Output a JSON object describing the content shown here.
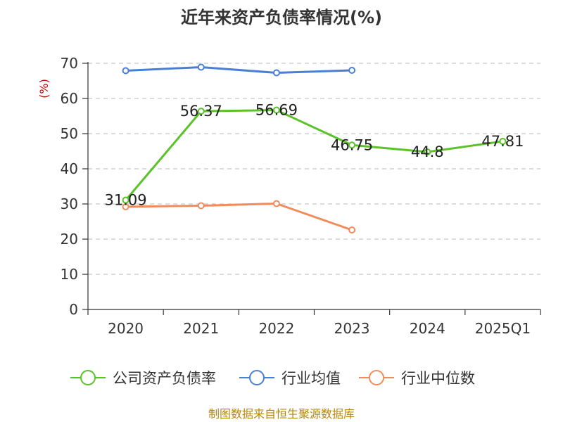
{
  "chart_data": {
    "type": "line",
    "title": "近年来资产负债率情况(%)",
    "ylabel": "(%)",
    "xlabel": "",
    "categories": [
      "2020",
      "2021",
      "2022",
      "2023",
      "2024",
      "2025Q1"
    ],
    "ylim": [
      0,
      70
    ],
    "yticks": [
      0,
      10,
      20,
      30,
      40,
      50,
      60,
      70
    ],
    "grid": "horizontal dashed",
    "legend_position": "bottom",
    "series": [
      {
        "name": "公司资产负债率",
        "color": "#5bc229",
        "values": [
          31.09,
          56.37,
          56.69,
          46.75,
          44.8,
          47.81
        ],
        "labels": [
          "31.09",
          "56.37",
          "56.69",
          "46.75",
          "44.8",
          "47.81"
        ]
      },
      {
        "name": "行业均值",
        "color": "#4a7fd4",
        "values": [
          67.9,
          68.9,
          67.3,
          68.0,
          null,
          null
        ]
      },
      {
        "name": "行业中位数",
        "color": "#f28b5b",
        "values": [
          29.2,
          29.5,
          30.1,
          22.6,
          null,
          null
        ]
      }
    ]
  },
  "source": "制图数据来自恒生聚源数据库"
}
